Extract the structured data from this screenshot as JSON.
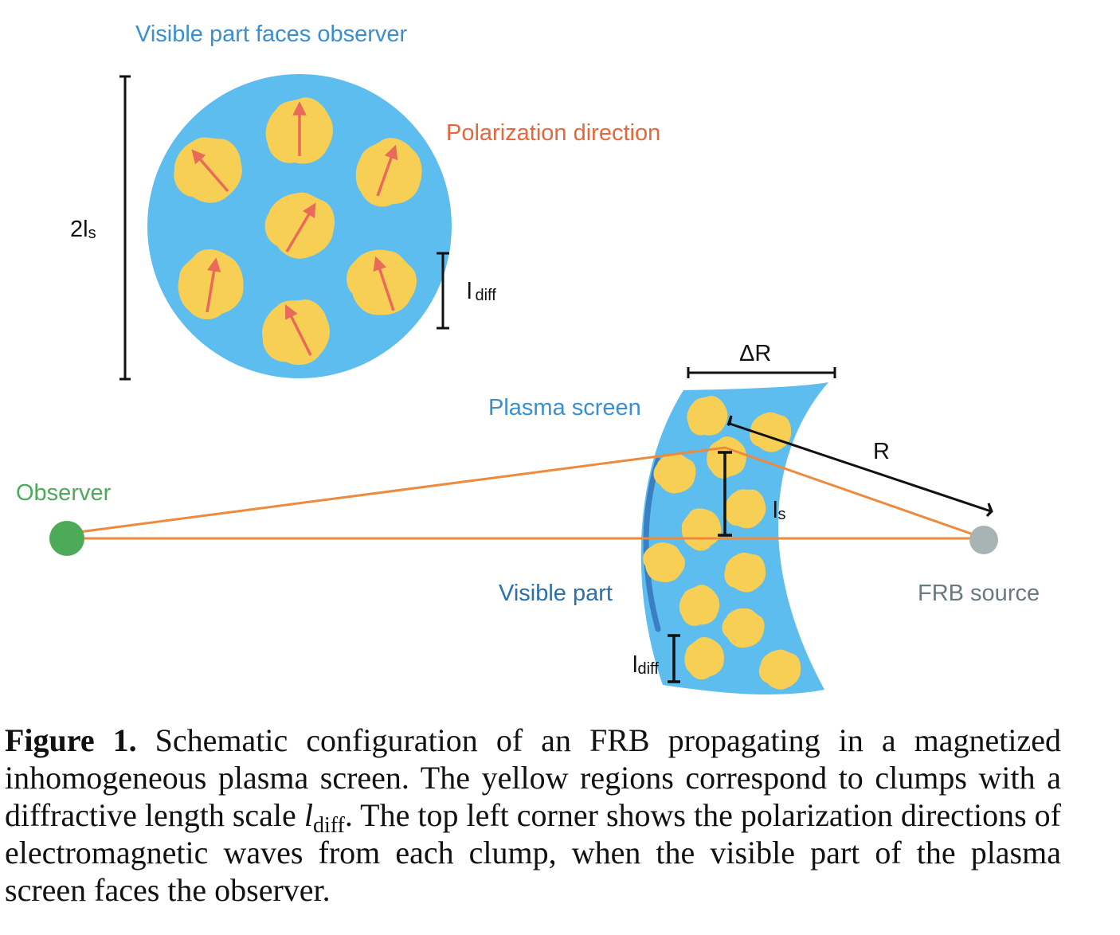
{
  "figure": {
    "labels": {
      "visible_faces": "Visible part faces observer",
      "polarization": "Polarization direction",
      "two_ls_main": "2l",
      "two_ls_sub": "s",
      "ldiff_top_main": "l",
      "ldiff_top_sub": "diff",
      "delta_r": "ΔR",
      "plasma_screen": "Plasma screen",
      "r": "R",
      "observer": "Observer",
      "ls_main": "l",
      "ls_sub": "s",
      "visible_part": "Visible part",
      "frb_source": "FRB source",
      "ldiff_bottom_main": "l",
      "ldiff_bottom_sub": "diff"
    },
    "colors": {
      "plasma": "#5dbdee",
      "clump": "#f7cf55",
      "polarization_arrow": "#ea6a5a",
      "ray": "#ee8a3c",
      "observer": "#4caa58",
      "source": "#a8b4b4",
      "visible_arc": "#3a7ec4"
    }
  },
  "caption": {
    "label": "Figure 1.",
    "text_before": " Schematic configuration of an FRB propagating in a magnetized inhomogeneous plasma screen. The yellow regions correspond to clumps with a diffractive length scale ",
    "symbol_main": "l",
    "symbol_sub": "diff",
    "text_after": ". The top left corner shows the polarization directions of electromagnetic waves from each clump, when the visible part of the plasma screen faces the observer."
  }
}
